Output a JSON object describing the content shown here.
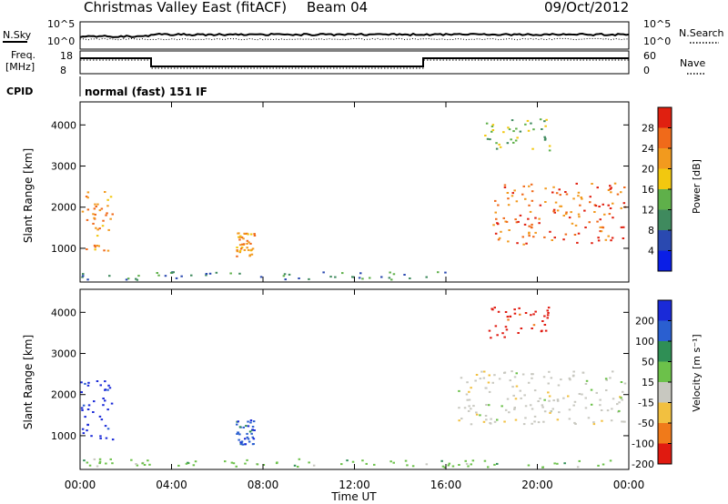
{
  "header": {
    "title": "Christmas Valley East (fitACF)",
    "beam": "Beam 04",
    "date": "09/Oct/2012"
  },
  "strip": {
    "nsky_label": "N.Sky",
    "nsearch_label": "N.Search",
    "noise_ticks": [
      "10^5",
      "10^0"
    ],
    "freq_label_line1": "Freq.",
    "freq_label_line2": "[MHz]",
    "freq_ticks": [
      "18",
      "8"
    ],
    "nave_label": "Nave",
    "nave_ticks": [
      "60",
      "0"
    ],
    "cpid_label": "CPID",
    "cpid_text": "normal (fast) 151 IF"
  },
  "chart_data": [
    {
      "type": "heatmap",
      "title": "",
      "xlabel": "Time UT",
      "ylabel": "Slant Range [km]",
      "x_ticks": [
        "00:00",
        "04:00",
        "08:00",
        "12:00",
        "16:00",
        "20:00",
        "00:00"
      ],
      "xlim_hours": [
        0,
        24
      ],
      "ylim": [
        180,
        4560
      ],
      "y_ticks": [
        1000,
        2000,
        3000,
        4000
      ],
      "colorbar": {
        "label": "Power [dB]",
        "ticks": [
          "4",
          "8",
          "12",
          "16",
          "20",
          "24",
          "28"
        ],
        "colors": [
          "#0a1ee6",
          "#2a49b0",
          "#3f8a5e",
          "#5fb04a",
          "#f2c80f",
          "#f29a1e",
          "#f06a1a",
          "#e02010"
        ]
      },
      "features": [
        {
          "name": "ground scatter near range",
          "t": [
            0.0,
            16.0
          ],
          "range_km": [
            250,
            450
          ],
          "power_db": 8
        },
        {
          "name": "early patch",
          "t": [
            0.0,
            1.4
          ],
          "range_km": [
            900,
            2400
          ],
          "power_db": 18
        },
        {
          "name": "ionospheric scatter late",
          "t": [
            18.0,
            23.8
          ],
          "range_km": [
            1100,
            2600
          ],
          "power_db": 22
        },
        {
          "name": "far range patch",
          "t": [
            17.6,
            20.5
          ],
          "range_km": [
            3400,
            4200
          ],
          "power_db": 10
        },
        {
          "name": "patch 07 UT",
          "t": [
            6.8,
            7.6
          ],
          "range_km": [
            800,
            1400
          ],
          "power_db": 20
        }
      ]
    },
    {
      "type": "heatmap",
      "title": "",
      "xlabel": "Time UT",
      "ylabel": "Slant Range [km]",
      "x_ticks": [
        "00:00",
        "04:00",
        "08:00",
        "12:00",
        "16:00",
        "20:00",
        "00:00"
      ],
      "xlim_hours": [
        0,
        24
      ],
      "ylim": [
        180,
        4560
      ],
      "y_ticks": [
        1000,
        2000,
        3000,
        4000
      ],
      "colorbar": {
        "label": "Velocity [m s⁻¹]",
        "ticks": [
          "200",
          "100",
          "50",
          "15",
          "-15",
          "-50",
          "-100",
          "-200"
        ],
        "colors": [
          "#1a2ad8",
          "#2a5fd0",
          "#2f8f55",
          "#6cc14a",
          "#c8c8c0",
          "#f2c040",
          "#f07a1a",
          "#e01a10"
        ]
      },
      "features": [
        {
          "name": "ground scatter near range",
          "t": [
            0.0,
            24.0
          ],
          "range_km": [
            250,
            450
          ],
          "velocity": 15
        },
        {
          "name": "early patch",
          "t": [
            0.0,
            1.4
          ],
          "range_km": [
            900,
            2400
          ],
          "velocity": 200
        },
        {
          "name": "late ground scatter",
          "t": [
            16.5,
            23.8
          ],
          "range_km": [
            1300,
            2600
          ],
          "velocity": 0
        },
        {
          "name": "far range patch",
          "t": [
            17.6,
            20.5
          ],
          "range_km": [
            3400,
            4200
          ],
          "velocity": -200
        },
        {
          "name": "patch 07 UT",
          "t": [
            6.8,
            7.6
          ],
          "range_km": [
            800,
            1400
          ],
          "velocity": 150
        }
      ]
    }
  ]
}
